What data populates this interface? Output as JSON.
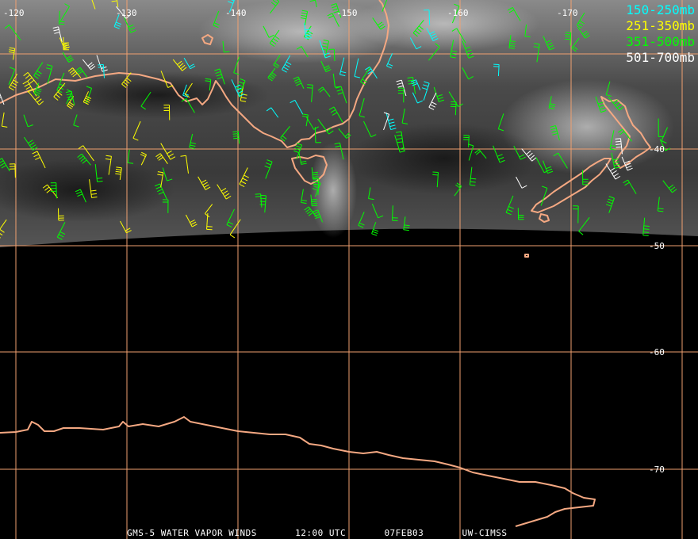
{
  "map": {
    "longitude_labels": [
      "-120",
      "-130",
      "-140",
      "-150",
      "-160",
      "-170"
    ],
    "latitude_labels": [
      "-40",
      "-50",
      "-60",
      "-70"
    ]
  },
  "legend": [
    {
      "label": "150-250mb",
      "color": "#00ffff"
    },
    {
      "label": "251-350mb",
      "color": "#ffff00"
    },
    {
      "label": "351-500mb",
      "color": "#00ff00"
    },
    {
      "label": "501-700mb",
      "color": "#ffffff"
    }
  ],
  "footer": {
    "product": "GMS-5 WATER VAPOR WINDS",
    "time": "12:00 UTC",
    "date": "07FEB03",
    "source": "UW-CIMSS"
  },
  "colors": {
    "coastline": "#f4a882",
    "grid": "#f0a070",
    "background": "#000000"
  }
}
